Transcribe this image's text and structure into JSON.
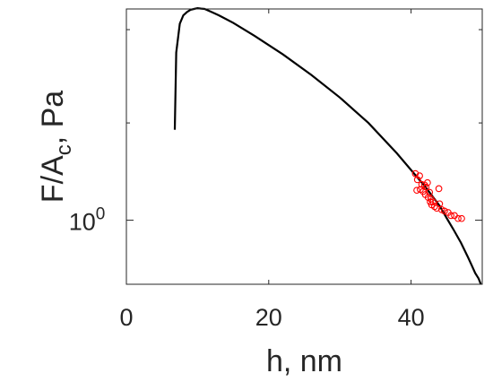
{
  "chart_data": {
    "type": "line",
    "xlabel": "h, nm",
    "ylabel": "F/A",
    "ylabel_subscript": "c",
    "ylabel_suffix": ", Pa",
    "xlim": [
      0,
      50
    ],
    "ylim": [
      0.74,
      2.7
    ],
    "y_scale": "log",
    "grid": false,
    "legend": "none",
    "x_ticks": [
      {
        "value": 0,
        "label": "0"
      },
      {
        "value": 20,
        "label": "20"
      },
      {
        "value": 40,
        "label": "40"
      }
    ],
    "y_ticks": [
      {
        "value": 1,
        "base": "10",
        "exponent": "0"
      }
    ],
    "y_minor_ticks": [
      1.58,
      2.45
    ],
    "series": [
      {
        "kind": "line",
        "color": "#000000",
        "x": [
          6.8,
          7.0,
          7.5,
          8.0,
          8.5,
          9.0,
          9.5,
          10.0,
          10.5,
          11,
          12,
          13,
          15,
          18,
          22,
          26,
          30,
          34,
          38,
          42,
          44,
          45,
          46,
          47,
          48,
          48.5,
          49,
          49.5,
          49.8
        ],
        "y": [
          1.53,
          2.2,
          2.52,
          2.62,
          2.66,
          2.69,
          2.7,
          2.71,
          2.705,
          2.7,
          2.66,
          2.62,
          2.53,
          2.38,
          2.18,
          1.98,
          1.78,
          1.58,
          1.37,
          1.17,
          1.07,
          1.01,
          0.955,
          0.9,
          0.84,
          0.81,
          0.78,
          0.76,
          0.74
        ]
      },
      {
        "kind": "scatter",
        "color": "#ff0000",
        "marker": "circle-open",
        "x": [
          40.6,
          40.9,
          41.2,
          40.8,
          41.5,
          41.9,
          41.7,
          42.1,
          42.3,
          42.0,
          42.6,
          42.4,
          42.8,
          43.1,
          42.9,
          43.3,
          43.6,
          44.0,
          44.3,
          44.7,
          45.2,
          45.6,
          46.1,
          46.6,
          47.1,
          43.9,
          41.3,
          42.7
        ],
        "y": [
          1.245,
          1.21,
          1.232,
          1.151,
          1.183,
          1.18,
          1.145,
          1.168,
          1.193,
          1.128,
          1.14,
          1.113,
          1.105,
          1.09,
          1.075,
          1.066,
          1.058,
          1.08,
          1.051,
          1.044,
          1.037,
          1.022,
          1.022,
          1.008,
          1.008,
          1.16,
          1.155,
          1.09
        ]
      }
    ]
  }
}
